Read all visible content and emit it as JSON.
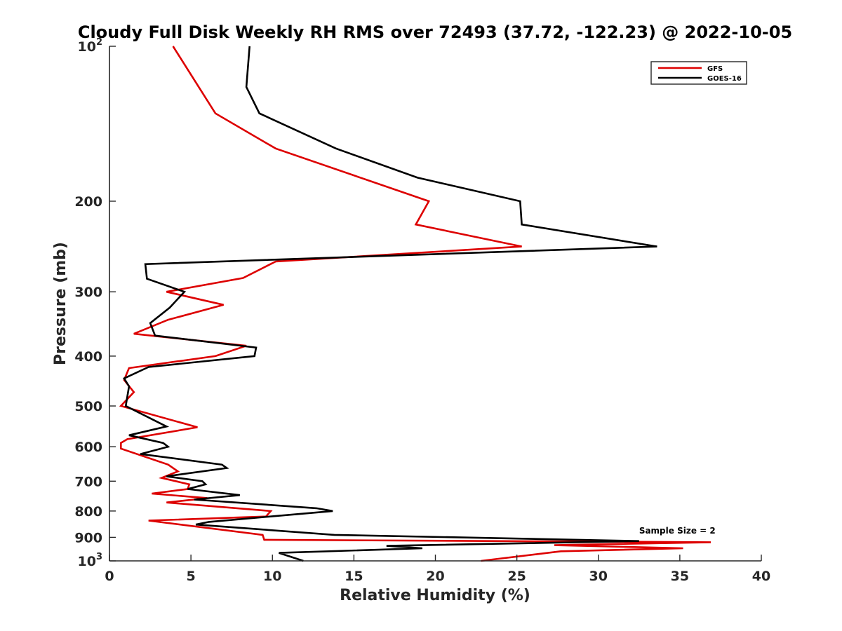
{
  "chart_data": {
    "type": "line",
    "title": "Cloudy Full Disk Weekly RH RMS over 72493 (37.72, -122.23) @ 2022-10-05",
    "xlabel": "Relative Humidity (%)",
    "ylabel": "Pressure (mb)",
    "xlim": [
      0,
      40
    ],
    "ylim": [
      100,
      1000
    ],
    "yscale": "log",
    "yreversed": true,
    "grid": false,
    "legend_position": "top-right",
    "x_ticks": [
      "0",
      "5",
      "10",
      "15",
      "20",
      "25",
      "30",
      "35",
      "40"
    ],
    "y_ticks": [
      {
        "value": 100,
        "label": "10",
        "exp": "2"
      },
      {
        "value": 200,
        "label": "200",
        "exp": ""
      },
      {
        "value": 300,
        "label": "300",
        "exp": ""
      },
      {
        "value": 400,
        "label": "400",
        "exp": ""
      },
      {
        "value": 500,
        "label": "500",
        "exp": ""
      },
      {
        "value": 600,
        "label": "600",
        "exp": ""
      },
      {
        "value": 700,
        "label": "700",
        "exp": ""
      },
      {
        "value": 800,
        "label": "800",
        "exp": ""
      },
      {
        "value": 900,
        "label": "900",
        "exp": ""
      },
      {
        "value": 1000,
        "label": "10",
        "exp": "3"
      }
    ],
    "series": [
      {
        "name": "GFS",
        "color": "#dd0000",
        "points": [
          [
            3.9,
            100
          ],
          [
            6.5,
            135
          ],
          [
            10.2,
            158
          ],
          [
            19.6,
            200
          ],
          [
            18.8,
            222
          ],
          [
            25.3,
            245
          ],
          [
            10.2,
            262
          ],
          [
            8.2,
            282
          ],
          [
            3.5,
            300
          ],
          [
            7.0,
            318
          ],
          [
            3.6,
            340
          ],
          [
            1.5,
            362
          ],
          [
            8.4,
            382
          ],
          [
            6.5,
            400
          ],
          [
            1.2,
            422
          ],
          [
            0.9,
            445
          ],
          [
            1.5,
            470
          ],
          [
            0.7,
            500
          ],
          [
            5.4,
            550
          ],
          [
            1.1,
            580
          ],
          [
            0.7,
            590
          ],
          [
            0.7,
            605
          ],
          [
            3.6,
            650
          ],
          [
            4.2,
            670
          ],
          [
            3.2,
            690
          ],
          [
            4.9,
            710
          ],
          [
            4.8,
            725
          ],
          [
            2.6,
            740
          ],
          [
            6.0,
            755
          ],
          [
            3.5,
            770
          ],
          [
            9.9,
            800
          ],
          [
            9.6,
            820
          ],
          [
            2.4,
            835
          ],
          [
            9.4,
            890
          ],
          [
            9.5,
            910
          ],
          [
            36.9,
            920
          ],
          [
            27.3,
            932
          ],
          [
            35.2,
            945
          ],
          [
            27.7,
            958
          ],
          [
            22.8,
            1000
          ]
        ]
      },
      {
        "name": "GOES-16",
        "color": "#000000",
        "points": [
          [
            8.6,
            100
          ],
          [
            8.4,
            120
          ],
          [
            9.2,
            135
          ],
          [
            13.9,
            158
          ],
          [
            18.9,
            180
          ],
          [
            25.2,
            200
          ],
          [
            25.3,
            222
          ],
          [
            33.6,
            245
          ],
          [
            2.2,
            265
          ],
          [
            2.3,
            283
          ],
          [
            4.6,
            300
          ],
          [
            3.7,
            322
          ],
          [
            2.5,
            345
          ],
          [
            2.8,
            365
          ],
          [
            9.0,
            385
          ],
          [
            8.9,
            400
          ],
          [
            2.4,
            420
          ],
          [
            0.9,
            442
          ],
          [
            1.2,
            458
          ],
          [
            1.0,
            500
          ],
          [
            3.5,
            548
          ],
          [
            1.2,
            570
          ],
          [
            3.3,
            590
          ],
          [
            3.6,
            600
          ],
          [
            1.9,
            620
          ],
          [
            6.9,
            650
          ],
          [
            7.2,
            660
          ],
          [
            3.5,
            685
          ],
          [
            5.7,
            700
          ],
          [
            5.9,
            710
          ],
          [
            4.8,
            725
          ],
          [
            8.0,
            745
          ],
          [
            5.2,
            760
          ],
          [
            12.7,
            790
          ],
          [
            13.7,
            800
          ],
          [
            6.1,
            840
          ],
          [
            5.3,
            850
          ],
          [
            13.8,
            890
          ],
          [
            32.5,
            915
          ],
          [
            17.0,
            935
          ],
          [
            19.2,
            945
          ],
          [
            10.4,
            965
          ],
          [
            11.9,
            1000
          ]
        ]
      }
    ],
    "annotations": [
      {
        "text": "Sample Size = 2",
        "x": 32.5,
        "y": 890
      }
    ]
  }
}
